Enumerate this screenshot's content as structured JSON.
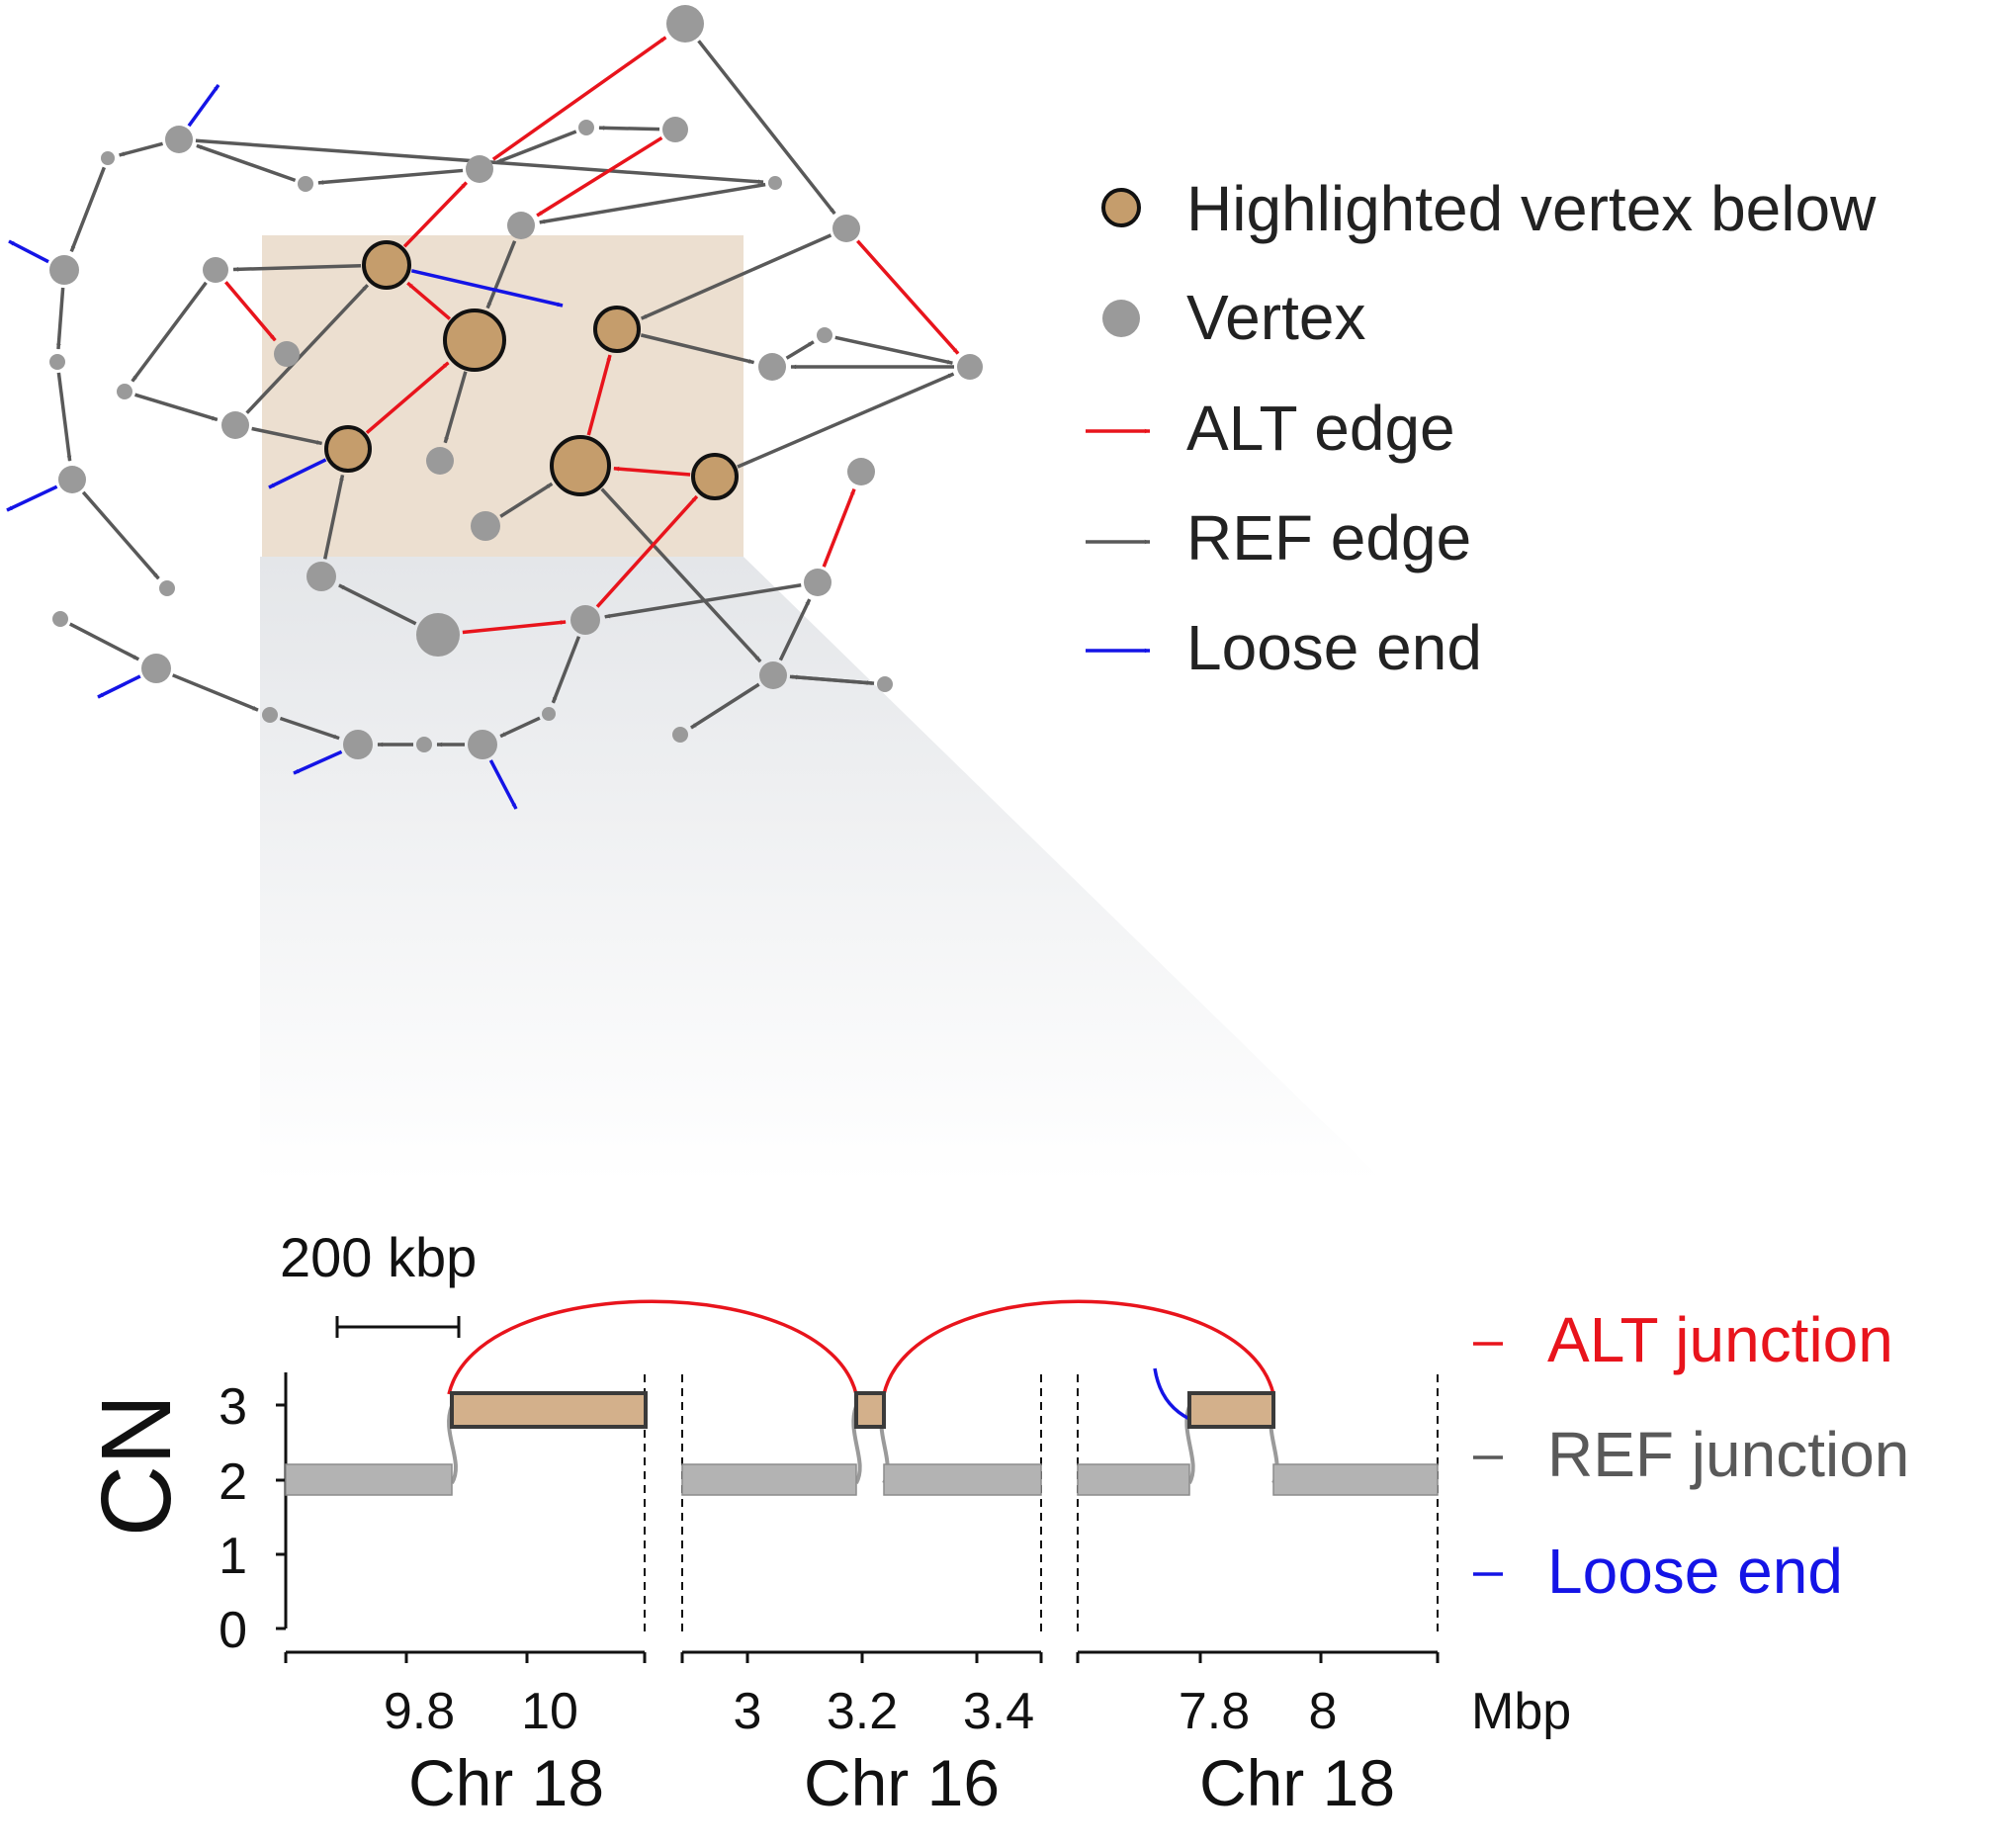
{
  "colors": {
    "alt": "#e8141c",
    "ref": "#595959",
    "loose": "#1414e6",
    "vertex": "#9a9a9a",
    "highlight": "#c59d6c",
    "highlight_band": "#ecdfd0",
    "segment_gray": "#b3b3b3",
    "segment_highlight": "#d3b08b",
    "ref_label_gray": "#595959"
  },
  "legend": {
    "highlighted": "Highlighted vertex below",
    "vertex": "Vertex",
    "alt_edge": "ALT edge",
    "ref_edge": "REF edge",
    "loose_end": "Loose end"
  },
  "track_legend": {
    "alt": "ALT junction",
    "ref": "REF junction",
    "loose": "Loose end"
  },
  "scale_bar": "200 kbp",
  "cn_axis": {
    "label": "CN",
    "ticks": [
      "3",
      "2",
      "1",
      "0"
    ]
  },
  "genomic_axis": {
    "unit": "Mbp",
    "panels": [
      {
        "chrom": "Chr 18",
        "ticks": [
          "9.8",
          "10"
        ]
      },
      {
        "chrom": "Chr 16",
        "ticks": [
          "3",
          "3.2",
          "3.4"
        ]
      },
      {
        "chrom": "Chr 18",
        "ticks": [
          "7.8",
          "8"
        ]
      }
    ]
  },
  "graph": {
    "vertices": [
      {
        "id": "a1",
        "kind": "normal"
      },
      {
        "id": "a2",
        "kind": "normal"
      },
      {
        "id": "h1",
        "kind": "highlighted"
      },
      {
        "id": "h2",
        "kind": "highlighted"
      },
      {
        "id": "h3",
        "kind": "highlighted"
      },
      {
        "id": "h4",
        "kind": "highlighted"
      },
      {
        "id": "h5",
        "kind": "highlighted"
      },
      {
        "id": "h6",
        "kind": "highlighted"
      }
    ],
    "edge_types": [
      "alt",
      "ref",
      "loose"
    ]
  }
}
